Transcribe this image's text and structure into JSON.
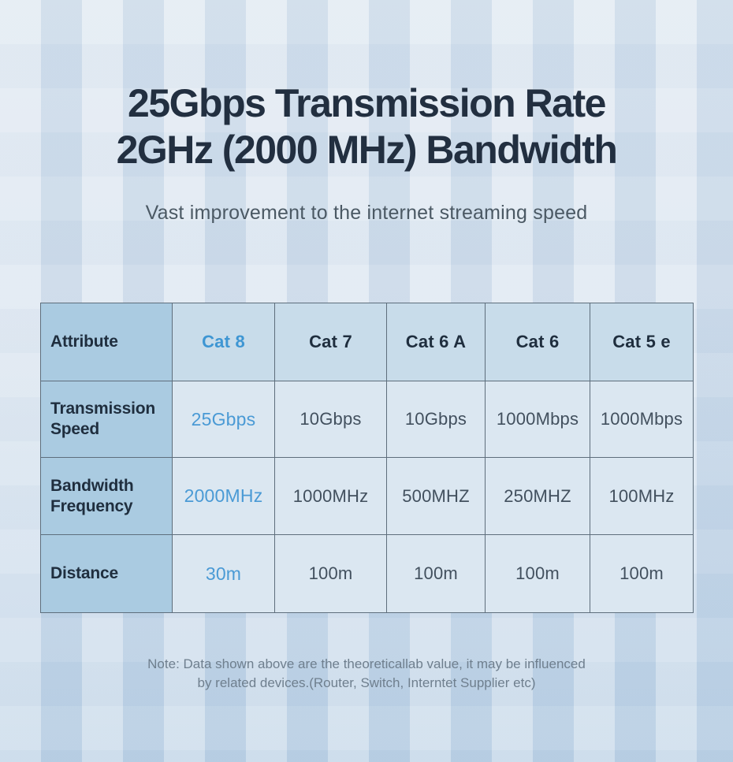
{
  "header": {
    "title_line1": "25Gbps Transmission Rate",
    "title_line2": "2GHz (2000 MHz) Bandwidth",
    "subtitle": "Vast improvement to the internet streaming speed"
  },
  "chart_data": {
    "type": "table",
    "title": "25Gbps Transmission Rate 2GHz (2000 MHz) Bandwidth",
    "columns": [
      "Attribute",
      "Cat 8",
      "Cat 7",
      "Cat 6 A",
      "Cat 6",
      "Cat 5 e"
    ],
    "rows": [
      {
        "label": "Transmission Speed",
        "values": [
          "25Gbps",
          "10Gbps",
          "10Gbps",
          "1000Mbps",
          "1000Mbps"
        ]
      },
      {
        "label": "Bandwidth Frequency",
        "values": [
          "2000MHz",
          "1000MHz",
          "500MHZ",
          "250MHZ",
          "100MHz"
        ]
      },
      {
        "label": "Distance",
        "values": [
          "30m",
          "100m",
          "100m",
          "100m",
          "100m"
        ]
      }
    ],
    "highlight_column": "Cat 8",
    "layout": {
      "first_column_header_style": "dark-blue",
      "header_row_style": "medium-blue",
      "grid": "on"
    }
  },
  "note": {
    "line1": "Note: Data shown above are the theoreticallab value, it may be influenced",
    "line2": "by related devices.(Router, Switch, Interntet Supplier etc)"
  },
  "colors": {
    "accent_blue": "#4a9ad5",
    "title_navy": "#222f40",
    "value_text": "#42505e",
    "first_column_bg": "#aacbe1",
    "header_row_bg": "#c8dcea",
    "cell_bg": "#dbe7f1",
    "table_border": "#5e6e7c",
    "page_bg_top": "#dce6f0",
    "page_bg_bottom": "#c0d4e7",
    "note_text": "#6f7f8e"
  }
}
